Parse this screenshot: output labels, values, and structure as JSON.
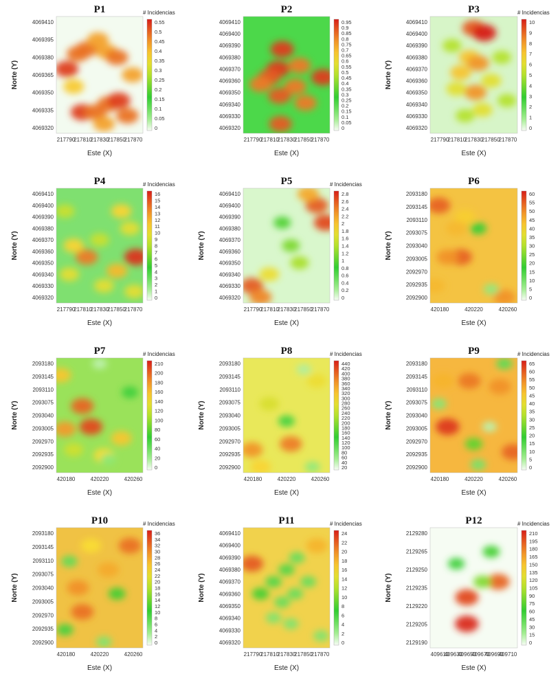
{
  "chart_data": [
    {
      "id": "P1",
      "type": "heatmap",
      "title": "P1",
      "xlabel": "Este (X)",
      "ylabel": "Norte (Y)",
      "legend_title": "# Incidencias",
      "x_ticks": [
        "217790",
        "217810",
        "217830",
        "217850",
        "217870"
      ],
      "y_ticks": [
        "4069410",
        "4069395",
        "4069380",
        "4069365",
        "4069350",
        "4069335",
        "4069320"
      ],
      "legend_ticks": [
        "0.55",
        "0.5",
        "0.45",
        "0.4",
        "0.35",
        "0.3",
        "0.25",
        "0.2",
        "0.15",
        "0.1",
        "0.05",
        "0"
      ],
      "value_range": [
        0,
        0.58
      ],
      "base_color": "#f3fbf0",
      "hotspots": [
        {
          "x": 0.12,
          "y": 0.45,
          "v": 0.55
        },
        {
          "x": 0.25,
          "y": 0.32,
          "v": 0.5
        },
        {
          "x": 0.35,
          "y": 0.28,
          "v": 0.5
        },
        {
          "x": 0.48,
          "y": 0.2,
          "v": 0.45
        },
        {
          "x": 0.58,
          "y": 0.3,
          "v": 0.45
        },
        {
          "x": 0.7,
          "y": 0.35,
          "v": 0.5
        },
        {
          "x": 0.3,
          "y": 0.82,
          "v": 0.55
        },
        {
          "x": 0.45,
          "y": 0.82,
          "v": 0.5
        },
        {
          "x": 0.6,
          "y": 0.75,
          "v": 0.5
        },
        {
          "x": 0.72,
          "y": 0.72,
          "v": 0.55
        },
        {
          "x": 0.55,
          "y": 0.92,
          "v": 0.45
        },
        {
          "x": 0.88,
          "y": 0.5,
          "v": 0.45
        },
        {
          "x": 0.2,
          "y": 0.6,
          "v": 0.4
        },
        {
          "x": 0.82,
          "y": 0.85,
          "v": 0.5
        }
      ]
    },
    {
      "id": "P2",
      "type": "heatmap",
      "title": "P2",
      "xlabel": "Este (X)",
      "ylabel": "",
      "legend_title": "",
      "x_ticks": [
        "217790",
        "217810",
        "217830",
        "217850",
        "217870"
      ],
      "y_ticks": [
        "4069410",
        "4069400",
        "4069390",
        "4069380",
        "4069370",
        "4069360",
        "4069350",
        "4069340",
        "4069330",
        "4069320"
      ],
      "legend_ticks": [
        "0.95",
        "0.9",
        "0.85",
        "0.8",
        "0.75",
        "0.7",
        "0.65",
        "0.6",
        "0.55",
        "0.5",
        "0.45",
        "0.4",
        "0.35",
        "0.3",
        "0.25",
        "0.2",
        "0.15",
        "0.1",
        "0.05",
        "0"
      ],
      "value_range": [
        0,
        1.0
      ],
      "base_color": "#4cd84a",
      "hotspots": [
        {
          "x": 0.45,
          "y": 0.28,
          "v": 0.95
        },
        {
          "x": 0.4,
          "y": 0.45,
          "v": 0.95
        },
        {
          "x": 0.3,
          "y": 0.52,
          "v": 0.9
        },
        {
          "x": 0.2,
          "y": 0.58,
          "v": 0.85
        },
        {
          "x": 0.65,
          "y": 0.42,
          "v": 0.85
        },
        {
          "x": 0.6,
          "y": 0.6,
          "v": 0.85
        },
        {
          "x": 0.42,
          "y": 0.68,
          "v": 0.9
        },
        {
          "x": 0.72,
          "y": 0.74,
          "v": 0.85
        },
        {
          "x": 0.92,
          "y": 0.52,
          "v": 0.95
        },
        {
          "x": 0.43,
          "y": 0.92,
          "v": 0.9
        }
      ]
    },
    {
      "id": "P3",
      "type": "heatmap",
      "title": "P3",
      "xlabel": "Este (X)",
      "ylabel": "Norte (Y)",
      "legend_title": "# Incidencias",
      "x_ticks": [
        "217790",
        "217810",
        "217830",
        "217850",
        "217870"
      ],
      "y_ticks": [
        "4069410",
        "4069400",
        "4069390",
        "4069380",
        "4069370",
        "4069360",
        "4069350",
        "4069340",
        "4069330",
        "4069320"
      ],
      "legend_ticks": [
        "10",
        "9",
        "8",
        "7",
        "6",
        "5",
        "4",
        "3",
        "2",
        "1",
        "0"
      ],
      "value_range": [
        0,
        10
      ],
      "base_color": "#d7f5c8",
      "hotspots": [
        {
          "x": 0.5,
          "y": 0.1,
          "v": 9
        },
        {
          "x": 0.62,
          "y": 0.14,
          "v": 10
        },
        {
          "x": 0.45,
          "y": 0.35,
          "v": 7
        },
        {
          "x": 0.55,
          "y": 0.4,
          "v": 8
        },
        {
          "x": 0.35,
          "y": 0.48,
          "v": 7
        },
        {
          "x": 0.3,
          "y": 0.62,
          "v": 6
        },
        {
          "x": 0.52,
          "y": 0.65,
          "v": 8
        },
        {
          "x": 0.7,
          "y": 0.55,
          "v": 6
        },
        {
          "x": 0.25,
          "y": 0.25,
          "v": 5
        },
        {
          "x": 0.82,
          "y": 0.35,
          "v": 5
        },
        {
          "x": 0.6,
          "y": 0.8,
          "v": 6
        },
        {
          "x": 0.4,
          "y": 0.85,
          "v": 5
        },
        {
          "x": 0.88,
          "y": 0.72,
          "v": 5
        }
      ]
    },
    {
      "id": "P4",
      "type": "heatmap",
      "title": "P4",
      "xlabel": "Este (X)",
      "ylabel": "Norte (Y)",
      "legend_title": "# Incidencias",
      "x_ticks": [
        "217790",
        "217810",
        "217830",
        "217850",
        "217870"
      ],
      "y_ticks": [
        "4069410",
        "4069400",
        "4069390",
        "4069380",
        "4069370",
        "4069360",
        "4069350",
        "4069340",
        "4069330",
        "4069320"
      ],
      "legend_ticks": [
        "16",
        "15",
        "14",
        "13",
        "12",
        "11",
        "10",
        "9",
        "8",
        "7",
        "6",
        "5",
        "4",
        "3",
        "2",
        "1",
        "0"
      ],
      "value_range": [
        0,
        16.5
      ],
      "base_color": "#7fe070",
      "hotspots": [
        {
          "x": 0.75,
          "y": 0.2,
          "v": 11
        },
        {
          "x": 0.85,
          "y": 0.35,
          "v": 10
        },
        {
          "x": 0.92,
          "y": 0.6,
          "v": 16
        },
        {
          "x": 0.35,
          "y": 0.6,
          "v": 14
        },
        {
          "x": 0.2,
          "y": 0.5,
          "v": 11
        },
        {
          "x": 0.15,
          "y": 0.75,
          "v": 10
        },
        {
          "x": 0.55,
          "y": 0.85,
          "v": 10
        },
        {
          "x": 0.7,
          "y": 0.72,
          "v": 12
        },
        {
          "x": 0.5,
          "y": 0.45,
          "v": 9
        },
        {
          "x": 0.1,
          "y": 0.2,
          "v": 9
        },
        {
          "x": 0.9,
          "y": 0.9,
          "v": 10
        }
      ]
    },
    {
      "id": "P5",
      "type": "heatmap",
      "title": "P5",
      "xlabel": "Este (X)",
      "ylabel": "Norte (Y)",
      "legend_title": "# Incidencias",
      "x_ticks": [
        "217790",
        "217810",
        "217830",
        "217850",
        "217870"
      ],
      "y_ticks": [
        "4069410",
        "4069400",
        "4069390",
        "4069380",
        "4069370",
        "4069360",
        "4069350",
        "4069340",
        "4069330",
        "4069320"
      ],
      "legend_ticks": [
        "2.8",
        "2.6",
        "2.4",
        "2.2",
        "2",
        "1.8",
        "1.6",
        "1.4",
        "1.2",
        "1",
        "0.8",
        "0.6",
        "0.4",
        "0.2",
        "0"
      ],
      "value_range": [
        0,
        2.9
      ],
      "base_color": "#d9f7cc",
      "hotspots": [
        {
          "x": 0.85,
          "y": 0.15,
          "v": 2.6
        },
        {
          "x": 0.95,
          "y": 0.3,
          "v": 2.7
        },
        {
          "x": 0.75,
          "y": 0.05,
          "v": 2.2
        },
        {
          "x": 0.1,
          "y": 0.85,
          "v": 2.6
        },
        {
          "x": 0.2,
          "y": 0.95,
          "v": 2.4
        },
        {
          "x": 0.3,
          "y": 0.75,
          "v": 1.8
        },
        {
          "x": 0.55,
          "y": 0.5,
          "v": 1.2
        },
        {
          "x": 0.45,
          "y": 0.3,
          "v": 1.0
        },
        {
          "x": 0.65,
          "y": 0.65,
          "v": 1.4
        }
      ]
    },
    {
      "id": "P6",
      "type": "heatmap",
      "title": "P6",
      "xlabel": "Este (X)",
      "ylabel": "Norte (Y)",
      "legend_title": "",
      "x_ticks": [
        "420180",
        "420220",
        "420260"
      ],
      "y_ticks": [
        "2093180",
        "2093145",
        "2093110",
        "2093075",
        "2093040",
        "2093005",
        "2092970",
        "2092935",
        "2092900"
      ],
      "legend_ticks": [
        "60",
        "55",
        "50",
        "45",
        "40",
        "35",
        "30",
        "25",
        "20",
        "15",
        "10",
        "5",
        "0"
      ],
      "value_range": [
        0,
        62
      ],
      "base_color": "#f4c342",
      "hotspots": [
        {
          "x": 0.1,
          "y": 0.15,
          "v": 55
        },
        {
          "x": 0.35,
          "y": 0.6,
          "v": 55
        },
        {
          "x": 0.2,
          "y": 0.6,
          "v": 50
        },
        {
          "x": 0.85,
          "y": 0.95,
          "v": 50
        },
        {
          "x": 0.05,
          "y": 0.85,
          "v": 45
        },
        {
          "x": 0.4,
          "y": 0.25,
          "v": 42
        },
        {
          "x": 0.7,
          "y": 0.88,
          "v": 8
        },
        {
          "x": 0.55,
          "y": 0.35,
          "v": 18
        },
        {
          "x": 0.3,
          "y": 0.35,
          "v": 45
        }
      ]
    },
    {
      "id": "P7",
      "type": "heatmap",
      "title": "P7",
      "xlabel": "Este (X)",
      "ylabel": "Norte (Y)",
      "legend_title": "# Incidencias",
      "x_ticks": [
        "420180",
        "420220",
        "420260"
      ],
      "y_ticks": [
        "2093180",
        "2093145",
        "2093110",
        "2093075",
        "2093040",
        "2093005",
        "2092970",
        "2092935",
        "2092900"
      ],
      "legend_ticks": [
        "210",
        "200",
        "180",
        "160",
        "140",
        "120",
        "100",
        "80",
        "60",
        "40",
        "20",
        "0"
      ],
      "value_range": [
        0,
        215
      ],
      "base_color": "#9ae25a",
      "hotspots": [
        {
          "x": 0.4,
          "y": 0.6,
          "v": 200
        },
        {
          "x": 0.1,
          "y": 0.62,
          "v": 170
        },
        {
          "x": 0.3,
          "y": 0.42,
          "v": 190
        },
        {
          "x": 0.75,
          "y": 0.7,
          "v": 150
        },
        {
          "x": 0.05,
          "y": 0.15,
          "v": 150
        },
        {
          "x": 0.55,
          "y": 0.85,
          "v": 140
        },
        {
          "x": 0.5,
          "y": 0.05,
          "v": 15
        },
        {
          "x": 0.6,
          "y": 0.88,
          "v": 30
        },
        {
          "x": 0.2,
          "y": 0.8,
          "v": 120
        },
        {
          "x": 0.85,
          "y": 0.3,
          "v": 60
        }
      ]
    },
    {
      "id": "P8",
      "type": "heatmap",
      "title": "P8",
      "xlabel": "Este (X)",
      "ylabel": "Norte (Y)",
      "legend_title": "# Incidencias",
      "x_ticks": [
        "420180",
        "420220",
        "420260"
      ],
      "y_ticks": [
        "2093180",
        "2093145",
        "2093110",
        "2093075",
        "2093040",
        "2093005",
        "2092970",
        "2092935",
        "2092900"
      ],
      "legend_ticks": [
        "440",
        "420",
        "400",
        "380",
        "360",
        "340",
        "320",
        "300",
        "280",
        "260",
        "240",
        "220",
        "200",
        "180",
        "160",
        "140",
        "120",
        "100",
        "80",
        "60",
        "40",
        "20"
      ],
      "value_range": [
        0,
        450
      ],
      "base_color": "#e9e85a",
      "hotspots": [
        {
          "x": 0.1,
          "y": 0.8,
          "v": 360
        },
        {
          "x": 0.55,
          "y": 0.75,
          "v": 380
        },
        {
          "x": 0.3,
          "y": 0.4,
          "v": 260
        },
        {
          "x": 0.85,
          "y": 0.2,
          "v": 280
        },
        {
          "x": 0.7,
          "y": 0.1,
          "v": 40
        },
        {
          "x": 0.8,
          "y": 0.95,
          "v": 60
        },
        {
          "x": 0.5,
          "y": 0.55,
          "v": 120
        },
        {
          "x": 0.2,
          "y": 0.95,
          "v": 300
        }
      ]
    },
    {
      "id": "P9",
      "type": "heatmap",
      "title": "P9",
      "xlabel": "Este (X)",
      "ylabel": "Norte (Y)",
      "legend_title": "# Incidencias",
      "x_ticks": [
        "420180",
        "420220",
        "420260"
      ],
      "y_ticks": [
        "2093180",
        "2093145",
        "2093110",
        "2093075",
        "2093040",
        "2093005",
        "2092970",
        "2092935",
        "2092900"
      ],
      "legend_ticks": [
        "65",
        "60",
        "55",
        "50",
        "45",
        "40",
        "35",
        "30",
        "25",
        "20",
        "15",
        "10",
        "5",
        "0"
      ],
      "value_range": [
        0,
        68
      ],
      "base_color": "#f6b73f",
      "hotspots": [
        {
          "x": 0.2,
          "y": 0.6,
          "v": 65
        },
        {
          "x": 0.45,
          "y": 0.2,
          "v": 58
        },
        {
          "x": 0.8,
          "y": 0.25,
          "v": 55
        },
        {
          "x": 0.95,
          "y": 0.82,
          "v": 60
        },
        {
          "x": 0.15,
          "y": 0.2,
          "v": 50
        },
        {
          "x": 0.1,
          "y": 0.4,
          "v": 10
        },
        {
          "x": 0.68,
          "y": 0.6,
          "v": 5
        },
        {
          "x": 0.55,
          "y": 0.93,
          "v": 12
        },
        {
          "x": 0.5,
          "y": 0.75,
          "v": 25
        },
        {
          "x": 0.85,
          "y": 0.05,
          "v": 15
        }
      ]
    },
    {
      "id": "P10",
      "type": "heatmap",
      "title": "P10",
      "xlabel": "Este (X)",
      "ylabel": "Norte (Y)",
      "legend_title": "# Incidencias",
      "x_ticks": [
        "420180",
        "420220",
        "420260"
      ],
      "y_ticks": [
        "2093180",
        "2093145",
        "2093110",
        "2093075",
        "2093040",
        "2093005",
        "2092970",
        "2092935",
        "2092900"
      ],
      "legend_ticks": [
        "36",
        "34",
        "32",
        "30",
        "28",
        "26",
        "24",
        "22",
        "20",
        "18",
        "16",
        "14",
        "12",
        "10",
        "8",
        "6",
        "4",
        "2",
        "0"
      ],
      "value_range": [
        0,
        37
      ],
      "base_color": "#f0c244",
      "hotspots": [
        {
          "x": 0.85,
          "y": 0.15,
          "v": 32
        },
        {
          "x": 0.25,
          "y": 0.5,
          "v": 30
        },
        {
          "x": 0.3,
          "y": 0.7,
          "v": 32
        },
        {
          "x": 0.6,
          "y": 0.35,
          "v": 28
        },
        {
          "x": 0.15,
          "y": 0.28,
          "v": 8
        },
        {
          "x": 0.55,
          "y": 0.95,
          "v": 6
        },
        {
          "x": 0.1,
          "y": 0.85,
          "v": 10
        },
        {
          "x": 0.7,
          "y": 0.55,
          "v": 12
        },
        {
          "x": 0.4,
          "y": 0.15,
          "v": 24
        }
      ]
    },
    {
      "id": "P11",
      "type": "heatmap",
      "title": "P11",
      "xlabel": "Este (X)",
      "ylabel": "Norte (Y)",
      "legend_title": "# Incidencias",
      "x_ticks": [
        "217790",
        "217810",
        "217830",
        "217850",
        "217870"
      ],
      "y_ticks": [
        "4069410",
        "4069400",
        "4069390",
        "4069380",
        "4069370",
        "4069360",
        "4069350",
        "4069340",
        "4069330",
        "4069320"
      ],
      "legend_ticks": [
        "24",
        "22",
        "20",
        "18",
        "16",
        "14",
        "12",
        "10",
        "8",
        "6",
        "4",
        "2",
        "0"
      ],
      "value_range": [
        0,
        24.5
      ],
      "base_color": "#f1d24c",
      "hotspots": [
        {
          "x": 0.1,
          "y": 0.3,
          "v": 22
        },
        {
          "x": 0.2,
          "y": 0.55,
          "v": 8
        },
        {
          "x": 0.35,
          "y": 0.45,
          "v": 6
        },
        {
          "x": 0.5,
          "y": 0.35,
          "v": 6
        },
        {
          "x": 0.62,
          "y": 0.25,
          "v": 5
        },
        {
          "x": 0.45,
          "y": 0.62,
          "v": 5
        },
        {
          "x": 0.6,
          "y": 0.55,
          "v": 5
        },
        {
          "x": 0.75,
          "y": 0.45,
          "v": 5
        },
        {
          "x": 0.35,
          "y": 0.75,
          "v": 4
        },
        {
          "x": 0.55,
          "y": 0.8,
          "v": 4
        },
        {
          "x": 0.9,
          "y": 0.9,
          "v": 4
        },
        {
          "x": 0.85,
          "y": 0.15,
          "v": 18
        }
      ]
    },
    {
      "id": "P12",
      "type": "heatmap",
      "title": "P12",
      "xlabel": "Este (X)",
      "ylabel": "Norte (Y)",
      "legend_title": "# Incidencias",
      "x_ticks": [
        "409610",
        "409630",
        "409650",
        "409670",
        "409690",
        "409710"
      ],
      "y_ticks": [
        "2129280",
        "2129265",
        "2129250",
        "2129235",
        "2129220",
        "2129205",
        "2129190"
      ],
      "legend_ticks": [
        "210",
        "195",
        "180",
        "165",
        "150",
        "135",
        "120",
        "105",
        "90",
        "75",
        "60",
        "45",
        "30",
        "15",
        "0"
      ],
      "value_range": [
        0,
        215
      ],
      "base_color": "#f6fcf3",
      "hotspots": [
        {
          "x": 0.42,
          "y": 0.58,
          "v": 200
        },
        {
          "x": 0.42,
          "y": 0.8,
          "v": 210
        },
        {
          "x": 0.78,
          "y": 0.45,
          "v": 190
        },
        {
          "x": 0.6,
          "y": 0.45,
          "v": 90
        },
        {
          "x": 0.3,
          "y": 0.3,
          "v": 60
        },
        {
          "x": 0.7,
          "y": 0.2,
          "v": 70
        }
      ]
    }
  ]
}
